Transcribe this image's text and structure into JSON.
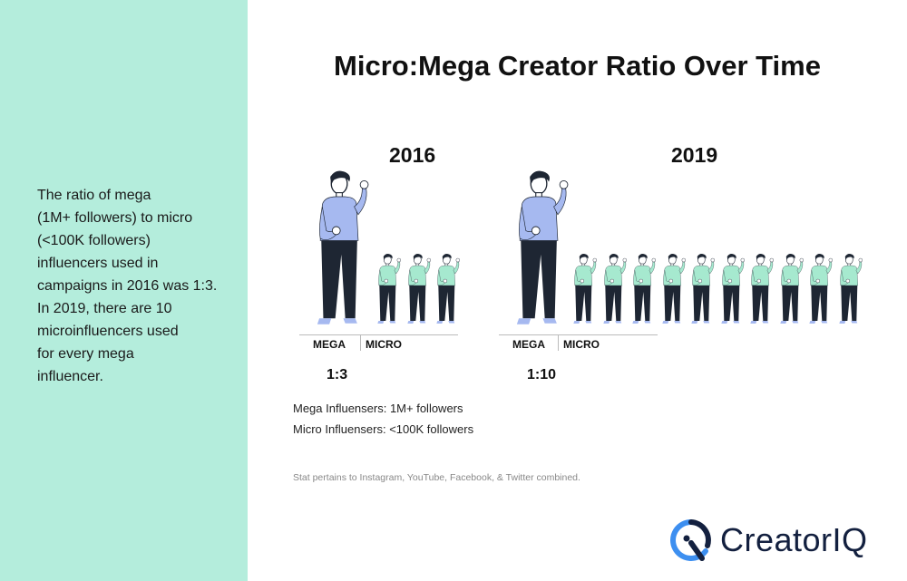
{
  "title": "Micro:Mega Creator Ratio Over Time",
  "description": "The ratio of mega\n(1M+ followers) to micro\n(<100K followers)\ninfluencers used in\ncampaigns in 2016 was 1:3.\nIn 2019, there are 10\nmicroinfluencers used\nfor every mega\ninfluencer.",
  "notes": [
    "Mega Influensers: 1M+ followers",
    "Micro Influensers: <100K followers"
  ],
  "footnote": "Stat pertains to Instagram, YouTube, Facebook, & Twitter combined.",
  "logo": "CreatorIQ",
  "colors": {
    "panel": "#b4eddc",
    "mega_shirt": "#a6b9f0",
    "micro_shirt": "#a6e9cf",
    "pants": "#1e2633",
    "logo_blue": "#3d8ff0",
    "logo_dark": "#13203f"
  },
  "chart_data": {
    "type": "pictogram",
    "title": "Micro:Mega Creator Ratio Over Time",
    "groups": [
      {
        "year": "2016",
        "mega_label": "MEGA",
        "micro_label": "MICRO",
        "mega": 1,
        "micro": 3,
        "ratio": "1:3"
      },
      {
        "year": "2019",
        "mega_label": "MEGA",
        "micro_label": "MICRO",
        "mega": 1,
        "micro": 10,
        "ratio": "1:10"
      }
    ]
  }
}
